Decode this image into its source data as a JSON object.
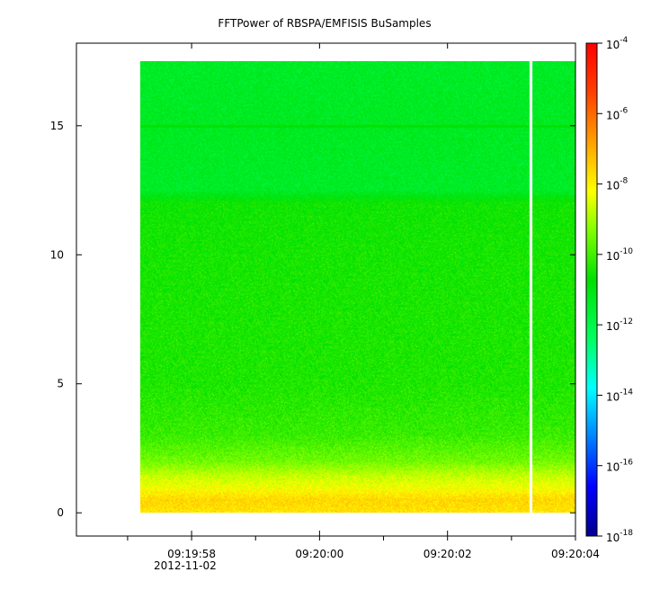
{
  "chart_data": {
    "type": "heatmap",
    "title": "FFTPower of RBSPA/EMFISIS  BuSamples",
    "xlabel": "",
    "ylabel": "",
    "x_axis": {
      "type": "time",
      "date_label": "2012-11-02",
      "range": [
        "09:19:56.2",
        "09:20:04.0"
      ],
      "ticks": [
        "09:19:58",
        "09:20:00",
        "09:20:02",
        "09:20:04"
      ],
      "minor_ticks": [
        "09:19:57",
        "09:19:58",
        "09:19:59",
        "09:20:00",
        "09:20:01",
        "09:20:02",
        "09:20:03",
        "09:20:04"
      ]
    },
    "y_axis": {
      "range": [
        -0.9,
        18.2
      ],
      "ticks": [
        0,
        5,
        10,
        15
      ]
    },
    "colorbar": {
      "scale": "log",
      "range": [
        1e-18,
        0.0001
      ],
      "tick_base": "10",
      "tick_exponents": [
        "-4",
        "-6",
        "-8",
        "-10",
        "-12",
        "-14",
        "-16",
        "-18"
      ],
      "colormap": [
        "#00008f",
        "#0000ff",
        "#0080ff",
        "#00ffff",
        "#00ff60",
        "#00e000",
        "#80ff00",
        "#ffff00",
        "#ffa000",
        "#ff4000",
        "#ff0000"
      ]
    },
    "data": {
      "time_start": "09:19:57.2",
      "time_end": "09:20:04.0",
      "freq_range": [
        0,
        17.5
      ],
      "gap_time": "09:20:03.3",
      "frequency_profile_log10_power": [
        {
          "freq": 0.0,
          "value": -7.8
        },
        {
          "freq": 0.5,
          "value": -7.6
        },
        {
          "freq": 1.0,
          "value": -8.3
        },
        {
          "freq": 1.5,
          "value": -8.8
        },
        {
          "freq": 2.0,
          "value": -9.5
        },
        {
          "freq": 3.0,
          "value": -10.1
        },
        {
          "freq": 5.0,
          "value": -10.4
        },
        {
          "freq": 10.0,
          "value": -10.5
        },
        {
          "freq": 12.0,
          "value": -10.6
        },
        {
          "freq": 12.5,
          "value": -11.4
        },
        {
          "freq": 15.0,
          "value": -11.3
        },
        {
          "freq": 17.5,
          "value": -11.4
        }
      ],
      "narrowband_line": {
        "freq": 15.0,
        "value": -10.8
      }
    }
  }
}
